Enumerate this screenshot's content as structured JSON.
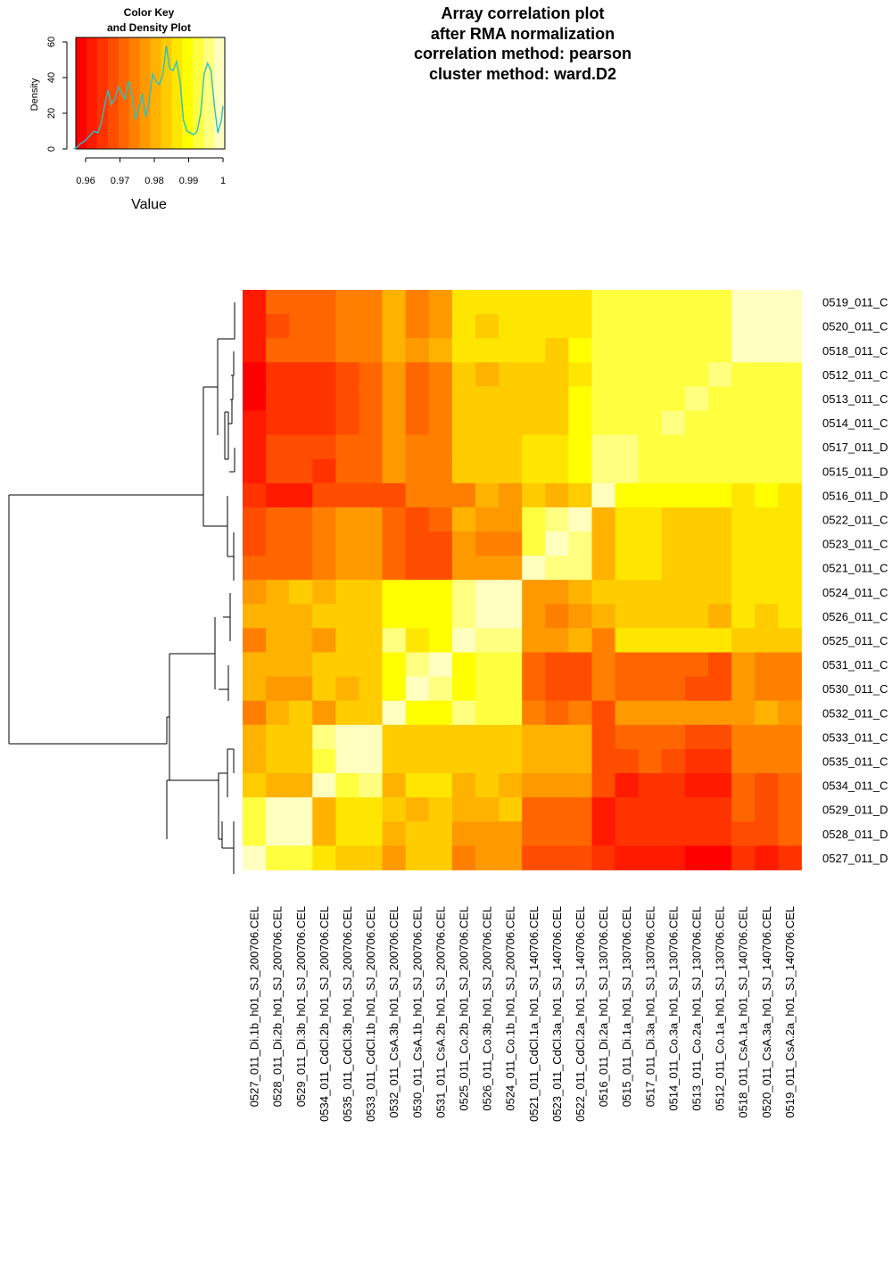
{
  "chart_data": {
    "type": "heatmap",
    "title_lines": [
      "Array correlation plot",
      "after RMA normalization",
      "correlation method: pearson",
      "cluster method: ward.D2"
    ],
    "color_key": {
      "title_lines": [
        "Color Key",
        "and Density Plot"
      ],
      "xlabel": "Value",
      "ylabel": "Density",
      "x_ticks": [
        "0.96",
        "0.97",
        "0.98",
        "0.99",
        "1"
      ],
      "y_ticks": [
        "0",
        "20",
        "40",
        "60"
      ],
      "value_range": [
        0.9565,
        1.0
      ],
      "density_range": [
        0,
        62
      ],
      "colors": [
        "#ff0000",
        "#ff1a00",
        "#ff3300",
        "#ff4d00",
        "#ff6600",
        "#ff8000",
        "#ff9900",
        "#ffb300",
        "#ffcc00",
        "#ffe600",
        "#ffff00",
        "#ffff40",
        "#ffff80",
        "#ffffbf"
      ],
      "density_curve": [
        [
          0.9565,
          0
        ],
        [
          0.9575,
          1
        ],
        [
          0.9585,
          3
        ],
        [
          0.9595,
          4
        ],
        [
          0.9605,
          6
        ],
        [
          0.9615,
          8
        ],
        [
          0.9625,
          10
        ],
        [
          0.9635,
          9
        ],
        [
          0.9645,
          14
        ],
        [
          0.9655,
          24
        ],
        [
          0.9665,
          33
        ],
        [
          0.9675,
          25
        ],
        [
          0.9685,
          28
        ],
        [
          0.9695,
          35
        ],
        [
          0.9705,
          31
        ],
        [
          0.9715,
          28
        ],
        [
          0.9725,
          38
        ],
        [
          0.9735,
          30
        ],
        [
          0.9745,
          17
        ],
        [
          0.9755,
          22
        ],
        [
          0.9765,
          31
        ],
        [
          0.9775,
          18
        ],
        [
          0.9785,
          26
        ],
        [
          0.9795,
          42
        ],
        [
          0.9805,
          38
        ],
        [
          0.9815,
          36
        ],
        [
          0.9825,
          42
        ],
        [
          0.9835,
          58
        ],
        [
          0.9845,
          45
        ],
        [
          0.9855,
          44
        ],
        [
          0.9865,
          49
        ],
        [
          0.9875,
          38
        ],
        [
          0.9885,
          16
        ],
        [
          0.9895,
          10
        ],
        [
          0.9905,
          9
        ],
        [
          0.9915,
          8
        ],
        [
          0.9925,
          10
        ],
        [
          0.9935,
          20
        ],
        [
          0.9945,
          42
        ],
        [
          0.9955,
          48
        ],
        [
          0.9965,
          44
        ],
        [
          0.9975,
          24
        ],
        [
          0.9985,
          9
        ],
        [
          0.9995,
          16
        ],
        [
          1.0,
          24
        ]
      ]
    },
    "row_labels": [
      "0519_011_C",
      "0520_011_C",
      "0518_011_C",
      "0512_011_C",
      "0513_011_C",
      "0514_011_C",
      "0517_011_D",
      "0515_011_D",
      "0516_011_D",
      "0522_011_C",
      "0523_011_C",
      "0521_011_C",
      "0524_011_C",
      "0526_011_C",
      "0525_011_C",
      "0531_011_C",
      "0530_011_C",
      "0532_011_C",
      "0533_011_C",
      "0535_011_C",
      "0534_011_C",
      "0529_011_D",
      "0528_011_D",
      "0527_011_D"
    ],
    "col_labels": [
      "0527_011_Di.1b_h01_SJ_200706.CEL",
      "0528_011_Di.2b_h01_SJ_200706.CEL",
      "0529_011_Di.3b_h01_SJ_200706.CEL",
      "0534_011_CdCl.2b_h01_SJ_200706.CEL",
      "0535_011_CdCl.3b_h01_SJ_200706.CEL",
      "0533_011_CdCl.1b_h01_SJ_200706.CEL",
      "0532_011_CsA.3b_h01_SJ_200706.CEL",
      "0530_011_CsA.1b_h01_SJ_200706.CEL",
      "0531_011_CsA.2b_h01_SJ_200706.CEL",
      "0525_011_Co.2b_h01_SJ_200706.CEL",
      "0526_011_Co.3b_h01_SJ_200706.CEL",
      "0524_011_Co.1b_h01_SJ_200706.CEL",
      "0521_011_CdCl.1a_h01_SJ_140706.CEL",
      "0523_011_CdCl.3a_h01_SJ_140706.CEL",
      "0522_011_CdCl.2a_h01_SJ_140706.CEL",
      "0516_011_Di.2a_h01_SJ_130706.CEL",
      "0515_011_Di.1a_h01_SJ_130706.CEL",
      "0517_011_Di.3a_h01_SJ_130706.CEL",
      "0514_011_Co.3a_h01_SJ_130706.CEL",
      "0513_011_Co.2a_h01_SJ_130706.CEL",
      "0512_011_Co.1a_h01_SJ_130706.CEL",
      "0518_011_CsA.1a_h01_SJ_140706.CEL",
      "0520_011_CsA.3a_h01_SJ_140706.CEL",
      "0519_011_CsA.2a_h01_SJ_140706.CEL"
    ],
    "matrix_color_levels": [
      [
        1,
        4,
        4,
        4,
        5,
        5,
        7,
        5,
        6,
        9,
        9,
        9,
        9,
        9,
        9,
        11,
        11,
        11,
        11,
        11,
        11,
        13,
        13,
        13
      ],
      [
        1,
        3,
        4,
        4,
        5,
        5,
        7,
        5,
        6,
        9,
        8,
        9,
        9,
        9,
        9,
        11,
        11,
        11,
        11,
        11,
        11,
        13,
        13,
        13
      ],
      [
        1,
        4,
        4,
        4,
        5,
        5,
        7,
        6,
        7,
        9,
        9,
        9,
        9,
        8,
        10,
        11,
        11,
        11,
        11,
        11,
        11,
        13,
        13,
        13
      ],
      [
        0,
        2,
        2,
        2,
        3,
        4,
        6,
        4,
        5,
        8,
        7,
        8,
        8,
        8,
        9,
        11,
        11,
        11,
        11,
        11,
        12,
        11,
        11,
        11
      ],
      [
        0,
        2,
        2,
        2,
        3,
        4,
        6,
        4,
        5,
        8,
        8,
        8,
        8,
        8,
        10,
        11,
        11,
        11,
        11,
        12,
        11,
        11,
        11,
        11
      ],
      [
        1,
        2,
        2,
        2,
        3,
        4,
        6,
        4,
        5,
        8,
        8,
        8,
        8,
        8,
        10,
        11,
        11,
        11,
        12,
        11,
        11,
        11,
        11,
        11
      ],
      [
        1,
        3,
        3,
        3,
        4,
        4,
        6,
        5,
        5,
        8,
        8,
        8,
        9,
        9,
        10,
        12,
        12,
        11,
        11,
        11,
        11,
        11,
        11,
        11
      ],
      [
        1,
        3,
        3,
        2,
        4,
        4,
        6,
        5,
        5,
        8,
        8,
        8,
        9,
        9,
        10,
        12,
        12,
        11,
        11,
        11,
        11,
        11,
        11,
        11
      ],
      [
        2,
        1,
        1,
        3,
        3,
        3,
        3,
        5,
        5,
        5,
        7,
        6,
        8,
        7,
        8,
        13,
        10,
        10,
        10,
        10,
        10,
        9,
        10,
        9
      ],
      [
        3,
        4,
        4,
        5,
        6,
        6,
        4,
        3,
        4,
        7,
        6,
        6,
        11,
        12,
        13,
        7,
        9,
        9,
        8,
        8,
        8,
        9,
        9,
        9
      ],
      [
        3,
        4,
        4,
        5,
        6,
        6,
        4,
        3,
        3,
        6,
        5,
        5,
        11,
        13,
        12,
        7,
        9,
        9,
        8,
        8,
        8,
        9,
        9,
        9
      ],
      [
        4,
        4,
        4,
        5,
        6,
        6,
        4,
        3,
        3,
        6,
        6,
        6,
        13,
        12,
        12,
        7,
        9,
        9,
        8,
        8,
        8,
        9,
        9,
        9
      ],
      [
        6,
        7,
        8,
        7,
        8,
        8,
        10,
        10,
        10,
        12,
        13,
        13,
        6,
        6,
        7,
        8,
        8,
        8,
        8,
        8,
        8,
        9,
        9,
        9
      ],
      [
        7,
        7,
        7,
        8,
        8,
        8,
        10,
        10,
        10,
        12,
        13,
        13,
        6,
        5,
        6,
        7,
        8,
        8,
        8,
        8,
        7,
        9,
        8,
        9
      ],
      [
        5,
        7,
        7,
        6,
        8,
        8,
        12,
        9,
        10,
        13,
        12,
        12,
        6,
        6,
        7,
        5,
        9,
        9,
        9,
        9,
        9,
        8,
        8,
        8
      ],
      [
        7,
        7,
        7,
        8,
        8,
        8,
        10,
        12,
        13,
        10,
        11,
        11,
        4,
        3,
        3,
        5,
        4,
        4,
        4,
        4,
        3,
        6,
        5,
        5
      ],
      [
        7,
        6,
        6,
        8,
        7,
        8,
        10,
        13,
        12,
        10,
        11,
        11,
        4,
        3,
        3,
        5,
        4,
        4,
        4,
        3,
        3,
        6,
        5,
        5
      ],
      [
        5,
        7,
        8,
        6,
        8,
        8,
        13,
        10,
        10,
        12,
        11,
        11,
        5,
        4,
        5,
        3,
        6,
        6,
        6,
        6,
        6,
        6,
        7,
        6
      ],
      [
        7,
        8,
        8,
        12,
        13,
        13,
        8,
        8,
        8,
        8,
        8,
        8,
        7,
        7,
        7,
        3,
        4,
        4,
        4,
        3,
        3,
        5,
        5,
        5
      ],
      [
        7,
        8,
        8,
        11,
        13,
        13,
        8,
        8,
        8,
        8,
        8,
        8,
        7,
        7,
        7,
        3,
        3,
        4,
        3,
        2,
        2,
        5,
        5,
        5
      ],
      [
        8,
        7,
        7,
        13,
        11,
        12,
        7,
        9,
        9,
        7,
        8,
        7,
        6,
        6,
        6,
        3,
        1,
        2,
        2,
        1,
        1,
        4,
        3,
        4
      ],
      [
        11,
        13,
        13,
        7,
        9,
        9,
        8,
        7,
        8,
        7,
        7,
        8,
        4,
        4,
        4,
        1,
        2,
        2,
        2,
        2,
        2,
        4,
        3,
        4
      ],
      [
        11,
        13,
        13,
        7,
        9,
        9,
        7,
        8,
        8,
        6,
        6,
        6,
        4,
        4,
        4,
        1,
        2,
        2,
        2,
        2,
        2,
        3,
        3,
        4
      ],
      [
        13,
        11,
        11,
        9,
        8,
        8,
        6,
        8,
        8,
        5,
        6,
        6,
        3,
        3,
        3,
        2,
        1,
        1,
        1,
        0,
        0,
        2,
        1,
        2
      ]
    ]
  }
}
